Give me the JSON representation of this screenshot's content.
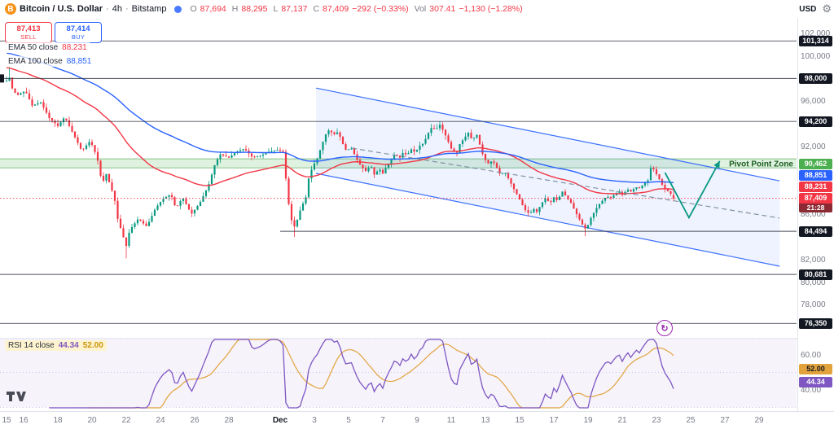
{
  "toolbar": {
    "btc_letter": "B",
    "symbol": "Bitcoin / U.S. Dollar",
    "sep": "·",
    "interval": "4h",
    "exchange": "Bitstamp",
    "o_label": "O",
    "o": "87,694",
    "h_label": "H",
    "h": "88,295",
    "l_label": "L",
    "l": "87,137",
    "c_label": "C",
    "c": "87,409",
    "change": "−292 (−0.33%)",
    "vol_label": "Vol",
    "vol": "307.41",
    "vol_change": "−1,130 (−1.28%)",
    "currency": "USD",
    "settings_icon": "⚙"
  },
  "trade": {
    "sell_value": "87,413",
    "sell_label": "SELL",
    "buy_value": "87,414",
    "buy_label": "BUY"
  },
  "legend": {
    "ema50_label": "EMA 50 close",
    "ema50_value": "88,231",
    "ema100_label": "EMA 100 close",
    "ema100_value": "88,851"
  },
  "rsi_legend": {
    "label": "RSI 14 close",
    "value": "44.34",
    "ma_value": "52.00"
  },
  "icons": {
    "refresh": "↻"
  },
  "colors": {
    "up": "#089981",
    "down": "#f23645",
    "ema50": "#f23645",
    "ema100": "#2962ff",
    "dark_badge": "#131722",
    "pivot_badge": "#4caf50",
    "last_badge": "#f23645",
    "countdown_bg": "#8c2a33",
    "channel": "#2962ff",
    "channel_fill": "rgba(41,98,255,0.08)",
    "level_line": "#2a2e39",
    "trendline": "#778899",
    "arrow": "#089981",
    "rsi": "#7e57c2",
    "rsi_ma": "#e2a33d",
    "axis_text": "#787b86",
    "pivot_zone_fill": "rgba(76,175,80,0.18)",
    "pivot_zone_line": "rgba(67,160,71,0.6)",
    "pivot_text": "#1b5e20"
  },
  "chart_data": {
    "type": "candlestick",
    "title": "Bitcoin / U.S. Dollar, 4h, Bitstamp",
    "symbol": "BTCUSD",
    "timeframe": "4h",
    "exchange": "Bitstamp",
    "ohlc_display": {
      "open": 87694,
      "high": 88295,
      "low": 87137,
      "close": 87409,
      "change": -292,
      "change_pct": -0.33
    },
    "volume_display": {
      "value": 307.41,
      "change": -1130,
      "change_pct": -1.28
    },
    "quote": {
      "sell": 87413,
      "buy": 87414
    },
    "ema": {
      "ema50_period": 50,
      "ema50_last": 88231,
      "ema100_period": 100,
      "ema100_last": 88851
    },
    "price_axis_ticks": [
      {
        "value": 102000,
        "label": "102,000"
      },
      {
        "value": 100000,
        "label": "100,000"
      },
      {
        "value": 96000,
        "label": "96,000"
      },
      {
        "value": 92000,
        "label": "92,000"
      },
      {
        "value": 86000,
        "label": "86,000"
      },
      {
        "value": 82000,
        "label": "82,000"
      },
      {
        "value": 80000,
        "label": "80,000"
      },
      {
        "value": 78000,
        "label": "78,000"
      }
    ],
    "level_badges": [
      {
        "price": 101314,
        "label": "101,314",
        "style": "dark",
        "line": true
      },
      {
        "price": 98000,
        "label": "98,000",
        "style": "dark",
        "line": true,
        "anchor_tag": true
      },
      {
        "price": 94200,
        "label": "94,200",
        "style": "dark",
        "line": true
      },
      {
        "price": 90462,
        "label": "90,462",
        "style": "pivot",
        "line": false
      },
      {
        "price": 88851,
        "label": "88,851",
        "style": "ema100",
        "line": false
      },
      {
        "price": 88231,
        "label": "88,231",
        "style": "ema50",
        "line": false
      },
      {
        "price": 87409,
        "label": "87,409",
        "style": "last",
        "countdown": "21:28",
        "line": false
      },
      {
        "price": 84494,
        "label": "84,494",
        "style": "dark",
        "line": true,
        "start_day": 16.0
      },
      {
        "price": 80681,
        "label": "80,681",
        "style": "dark",
        "line": true
      },
      {
        "price": 76350,
        "label": "76,350",
        "style": "dark",
        "line": true
      }
    ],
    "pivot_zone": {
      "label": "Pivot Point Zone",
      "price": 90462,
      "top_price": 90900,
      "bottom_price": 90100
    },
    "channel": {
      "start_day": 18.1,
      "end_day": 45.2,
      "top_start_price": 97150,
      "top_end_price": 88950,
      "width_price": 7540
    },
    "trendline": {
      "start_day": 20.2,
      "start_price": 91840,
      "end_day": 45.2,
      "end_price": 85660,
      "dashed": true
    },
    "arrow": {
      "points": [
        [
          38.5,
          89680
        ],
        [
          39.9,
          85700
        ],
        [
          41.7,
          90700
        ]
      ]
    },
    "time_labels": [
      {
        "label": "15",
        "day": 0
      },
      {
        "label": "16",
        "day": 1
      },
      {
        "label": "18",
        "day": 3
      },
      {
        "label": "20",
        "day": 5
      },
      {
        "label": "22",
        "day": 7
      },
      {
        "label": "24",
        "day": 9
      },
      {
        "label": "26",
        "day": 11
      },
      {
        "label": "28",
        "day": 13
      },
      {
        "label": "Dec",
        "day": 16,
        "major": true
      },
      {
        "label": "3",
        "day": 18
      },
      {
        "label": "5",
        "day": 20
      },
      {
        "label": "7",
        "day": 22
      },
      {
        "label": "9",
        "day": 24
      },
      {
        "label": "11",
        "day": 26
      },
      {
        "label": "13",
        "day": 28
      },
      {
        "label": "15",
        "day": 30
      },
      {
        "label": "17",
        "day": 32
      },
      {
        "label": "19",
        "day": 34
      },
      {
        "label": "21",
        "day": 36
      },
      {
        "label": "23",
        "day": 38
      },
      {
        "label": "25",
        "day": 40
      },
      {
        "label": "27",
        "day": 42
      },
      {
        "label": "29",
        "day": 44
      }
    ],
    "close_path": [
      [
        0,
        97800
      ],
      [
        0.1,
        98500
      ],
      [
        0.3,
        97200
      ],
      [
        0.6,
        96500
      ],
      [
        1.1,
        96900
      ],
      [
        1.5,
        95600
      ],
      [
        2,
        95900
      ],
      [
        2.5,
        94500
      ],
      [
        3,
        93800
      ],
      [
        3.4,
        94600
      ],
      [
        3.9,
        93100
      ],
      [
        4.4,
        91600
      ],
      [
        4.9,
        92500
      ],
      [
        5.3,
        91000
      ],
      [
        5.6,
        88600
      ],
      [
        5.8,
        89700
      ],
      [
        6.3,
        87500
      ],
      [
        6.5,
        85600
      ],
      [
        6.8,
        84100
      ],
      [
        7,
        83200
      ],
      [
        7.2,
        84600
      ],
      [
        7.7,
        85600
      ],
      [
        8.2,
        84900
      ],
      [
        8.7,
        86500
      ],
      [
        9.1,
        87300
      ],
      [
        9.6,
        87800
      ],
      [
        9.9,
        86500
      ],
      [
        10.3,
        87500
      ],
      [
        10.8,
        86000
      ],
      [
        11.3,
        87000
      ],
      [
        11.8,
        88500
      ],
      [
        12.2,
        90500
      ],
      [
        12.5,
        91300
      ],
      [
        13,
        91000
      ],
      [
        13.4,
        91500
      ],
      [
        13.9,
        91800
      ],
      [
        14.4,
        91000
      ],
      [
        14.9,
        91200
      ],
      [
        15.3,
        91500
      ],
      [
        15.8,
        91700
      ],
      [
        16.2,
        91500
      ],
      [
        16.4,
        88000
      ],
      [
        16.6,
        85800
      ],
      [
        16.8,
        84800
      ],
      [
        17,
        85500
      ],
      [
        17.2,
        86500
      ],
      [
        17.5,
        87500
      ],
      [
        17.7,
        89500
      ],
      [
        18,
        90500
      ],
      [
        18.2,
        91000
      ],
      [
        18.4,
        92000
      ],
      [
        18.7,
        93200
      ],
      [
        18.9,
        93500
      ],
      [
        19.1,
        93000
      ],
      [
        19.4,
        93300
      ],
      [
        19.6,
        92400
      ],
      [
        19.9,
        91500
      ],
      [
        20.1,
        92000
      ],
      [
        20.6,
        90500
      ],
      [
        21,
        89800
      ],
      [
        21.3,
        90300
      ],
      [
        21.5,
        89500
      ],
      [
        21.8,
        90000
      ],
      [
        22,
        89600
      ],
      [
        22.2,
        90200
      ],
      [
        22.5,
        90800
      ],
      [
        22.7,
        91300
      ],
      [
        23,
        91000
      ],
      [
        23.2,
        91500
      ],
      [
        23.4,
        91200
      ],
      [
        23.7,
        91800
      ],
      [
        23.9,
        91400
      ],
      [
        24.1,
        92000
      ],
      [
        24.4,
        92300
      ],
      [
        24.6,
        93000
      ],
      [
        24.9,
        93800
      ],
      [
        25.1,
        93400
      ],
      [
        25.3,
        94000
      ],
      [
        25.6,
        93200
      ],
      [
        25.8,
        92500
      ],
      [
        26,
        91800
      ],
      [
        26.3,
        91300
      ],
      [
        26.5,
        92200
      ],
      [
        26.8,
        92800
      ],
      [
        27,
        93200
      ],
      [
        27.2,
        92600
      ],
      [
        27.5,
        93000
      ],
      [
        27.7,
        92000
      ],
      [
        27.9,
        91000
      ],
      [
        28.2,
        90400
      ],
      [
        28.4,
        90800
      ],
      [
        28.7,
        90000
      ],
      [
        28.9,
        89400
      ],
      [
        29.1,
        89800
      ],
      [
        29.4,
        89000
      ],
      [
        29.6,
        88400
      ],
      [
        29.9,
        87600
      ],
      [
        30.1,
        87000
      ],
      [
        30.3,
        86400
      ],
      [
        30.6,
        86000
      ],
      [
        30.8,
        86500
      ],
      [
        31,
        86200
      ],
      [
        31.3,
        87000
      ],
      [
        31.5,
        87400
      ],
      [
        31.8,
        87000
      ],
      [
        32,
        87500
      ],
      [
        32.2,
        87200
      ],
      [
        32.5,
        88000
      ],
      [
        32.7,
        87600
      ],
      [
        33,
        87000
      ],
      [
        33.2,
        86400
      ],
      [
        33.4,
        85800
      ],
      [
        33.7,
        85000
      ],
      [
        33.9,
        84600
      ],
      [
        34.1,
        85500
      ],
      [
        34.4,
        86300
      ],
      [
        34.6,
        86800
      ],
      [
        34.9,
        87300
      ],
      [
        35.1,
        87600
      ],
      [
        35.3,
        87400
      ],
      [
        35.6,
        87800
      ],
      [
        35.8,
        88000
      ],
      [
        36,
        87700
      ],
      [
        36.3,
        88200
      ],
      [
        36.5,
        88000
      ],
      [
        36.8,
        88400
      ],
      [
        37,
        88300
      ],
      [
        37.2,
        88600
      ],
      [
        37.5,
        89000
      ],
      [
        37.7,
        90300
      ],
      [
        37.9,
        89800
      ],
      [
        38.2,
        89000
      ],
      [
        38.4,
        88400
      ],
      [
        38.7,
        88000
      ],
      [
        38.9,
        87700
      ],
      [
        39.1,
        87409
      ]
    ],
    "notable_wicks": [
      [
        0.2,
        "high",
        99000
      ],
      [
        7,
        "low",
        82100
      ],
      [
        16.8,
        "low",
        84000
      ],
      [
        25.3,
        "high",
        94200
      ],
      [
        33.9,
        "low",
        84050
      ]
    ],
    "rsi": {
      "period": 14,
      "ma_period": 14,
      "value": 44.34,
      "ma_value": 52.0,
      "upper_band": 70,
      "middle_band": 50,
      "lower_band": 30,
      "ticks": [
        {
          "value": 60,
          "label": "60.00"
        },
        {
          "value": 40,
          "label": "40.00"
        }
      ],
      "badges": [
        {
          "value": 52.0,
          "label": "52.00",
          "style": "rsi_ma"
        },
        {
          "value": 44.34,
          "label": "44.34",
          "style": "rsi"
        }
      ]
    }
  }
}
